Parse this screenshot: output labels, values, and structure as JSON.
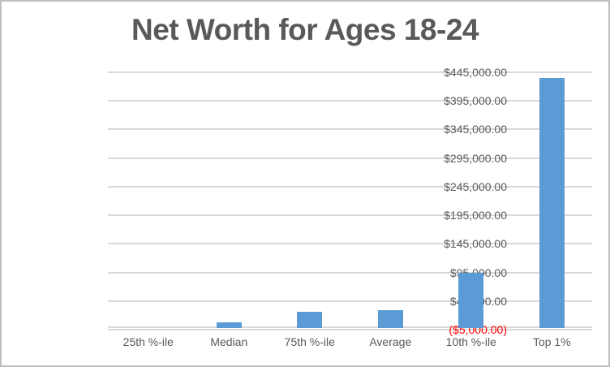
{
  "title": "Net Worth for Ages 18-24",
  "chart_data": {
    "type": "bar",
    "title": "Net Worth for Ages 18-24",
    "categories": [
      "25th %-ile",
      "Median",
      "75th %-ile",
      "Average",
      "10th %-ile",
      "Top 1%"
    ],
    "values": [
      0,
      8000,
      26000,
      29000,
      94000,
      435000
    ],
    "xlabel": "",
    "ylabel": "",
    "ylim": [
      -5000,
      445000
    ],
    "ytick_step": 50000,
    "yticks": [
      {
        "value": 445000,
        "label": "$445,000.00"
      },
      {
        "value": 395000,
        "label": "$395,000.00"
      },
      {
        "value": 345000,
        "label": "$345,000.00"
      },
      {
        "value": 295000,
        "label": "$295,000.00"
      },
      {
        "value": 245000,
        "label": "$245,000.00"
      },
      {
        "value": 195000,
        "label": "$195,000.00"
      },
      {
        "value": 145000,
        "label": "$145,000.00"
      },
      {
        "value": 95000,
        "label": "$95,000.00"
      },
      {
        "value": 45000,
        "label": "$45,000.00"
      },
      {
        "value": -5000,
        "label": "($5,000.00)"
      }
    ],
    "grid": true,
    "legend": "none"
  },
  "colors": {
    "bar": "#5B9BD5",
    "gridline": "#D9D9D9",
    "axis_text": "#595959",
    "negative_tick_text": "#FF0000",
    "title_text": "#595959",
    "chart_border": "#BFBFBF",
    "background": "#FFFFFF"
  }
}
